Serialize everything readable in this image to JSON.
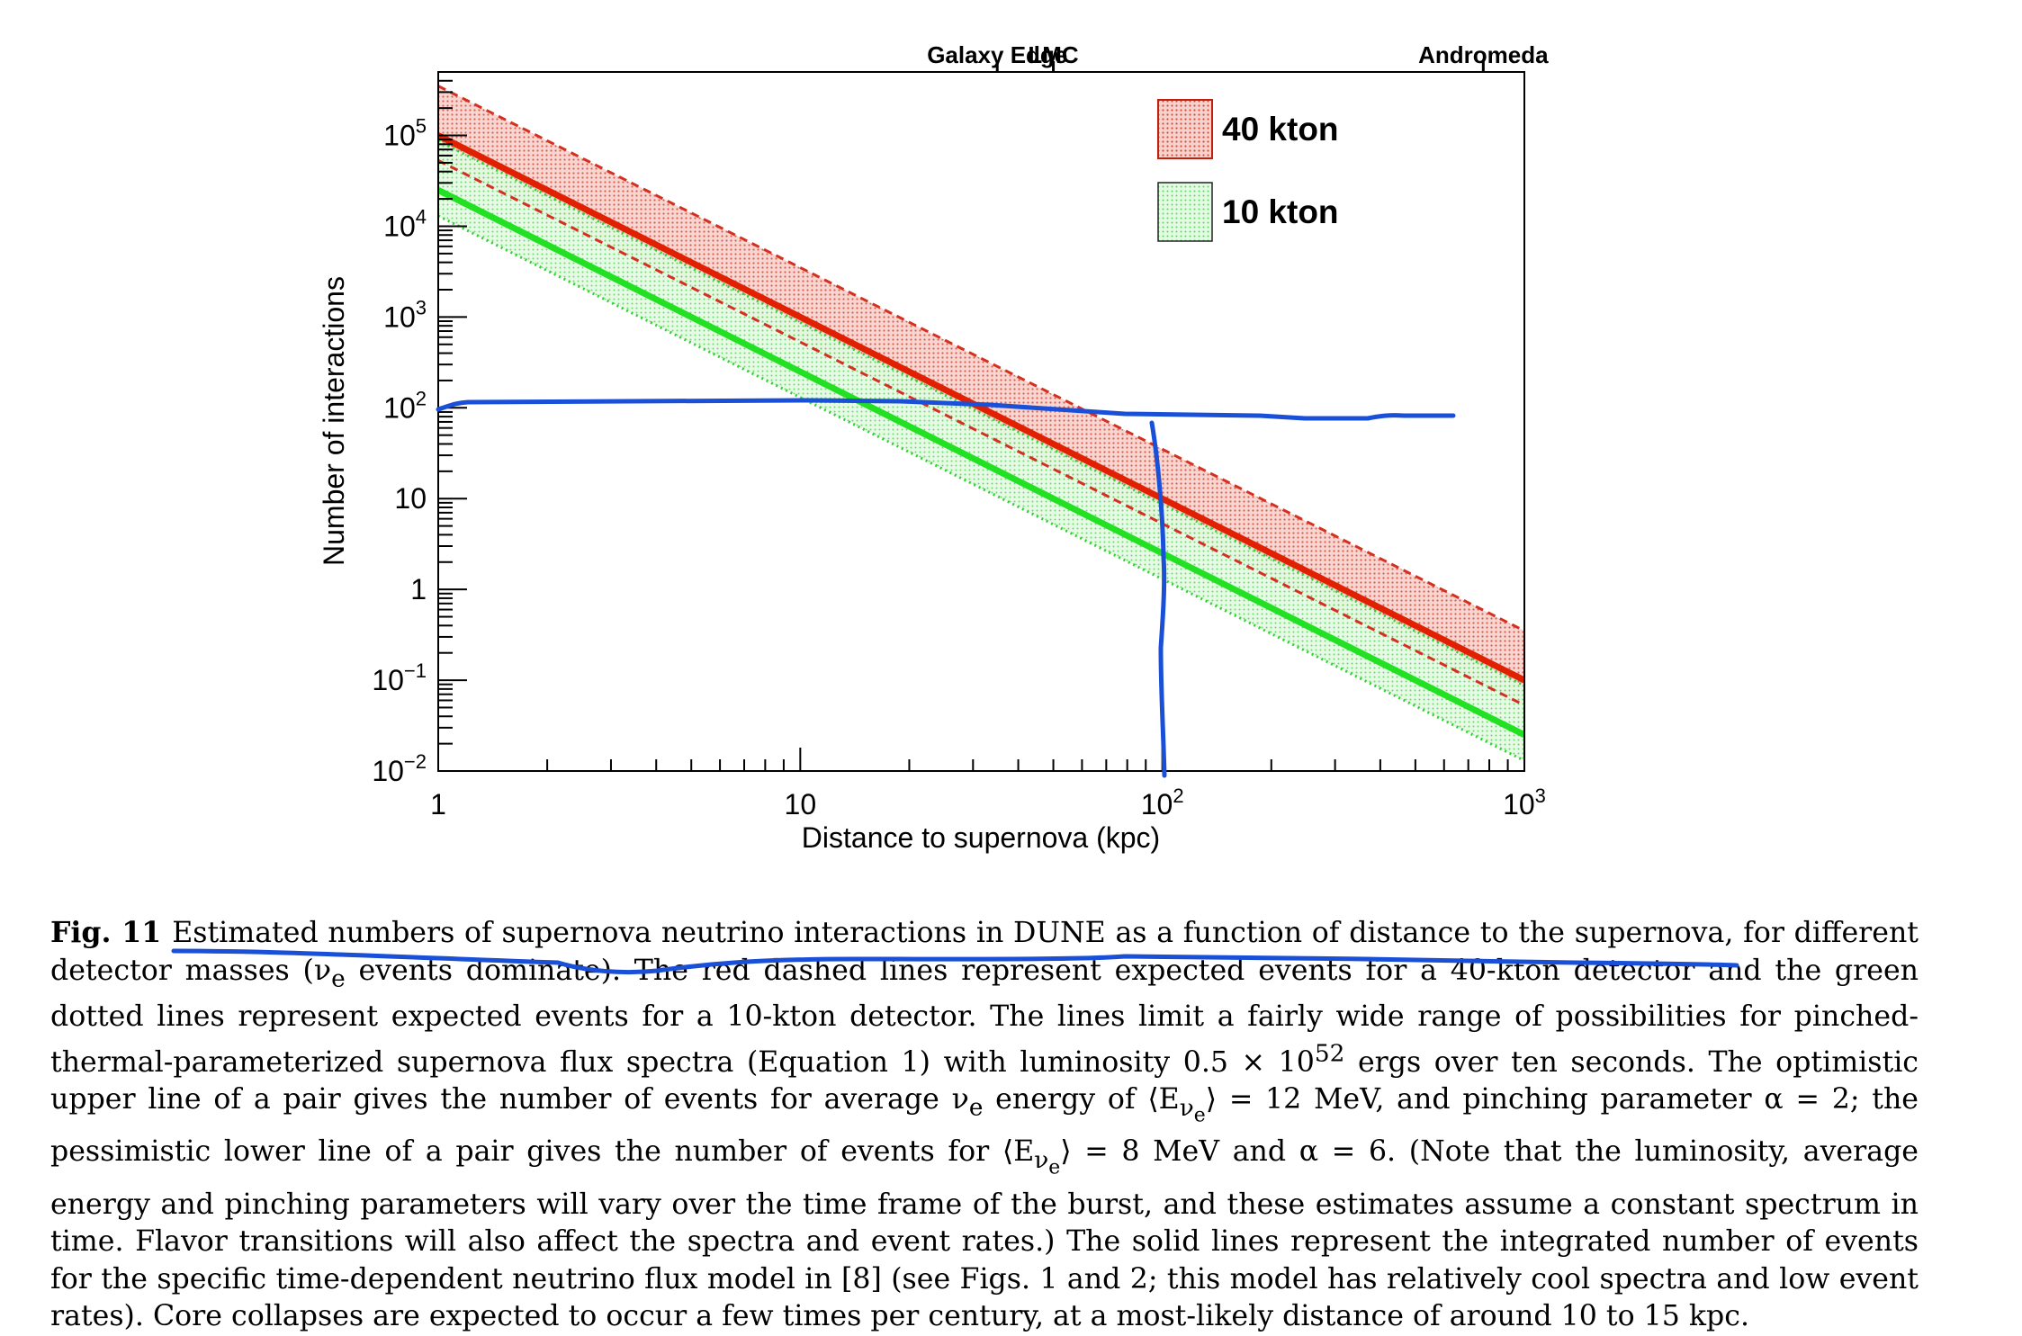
{
  "chart_data": {
    "type": "line",
    "x_scale": "log",
    "y_scale": "log",
    "xlim": [
      1,
      1000
    ],
    "ylim": [
      0.01,
      500000
    ],
    "xlabel": "Distance to supernova (kpc)",
    "ylabel": "Number of interactions",
    "x_ticks": [
      {
        "value": 1,
        "base": "1",
        "exp": ""
      },
      {
        "value": 10,
        "base": "10",
        "exp": ""
      },
      {
        "value": 100,
        "base": "10",
        "exp": "2"
      },
      {
        "value": 1000,
        "base": "10",
        "exp": "3"
      }
    ],
    "y_ticks": [
      {
        "value": 100000,
        "base": "10",
        "exp": "5"
      },
      {
        "value": 10000,
        "base": "10",
        "exp": "4"
      },
      {
        "value": 1000,
        "base": "10",
        "exp": "3"
      },
      {
        "value": 100,
        "base": "10",
        "exp": "2"
      },
      {
        "value": 10,
        "base": "10",
        "exp": ""
      },
      {
        "value": 1,
        "base": "1",
        "exp": ""
      },
      {
        "value": 0.1,
        "base": "10",
        "exp": "−1"
      },
      {
        "value": 0.01,
        "base": "10",
        "exp": "−2"
      }
    ],
    "top_markers": [
      {
        "label": "Galaxy Edge",
        "x": 35
      },
      {
        "label": "LMC",
        "x": 50
      },
      {
        "label": "Andromeda",
        "x": 770
      }
    ],
    "legend": [
      {
        "label": "40 kton",
        "color": "#e03020"
      },
      {
        "label": "10 kton",
        "color": "#40e040"
      }
    ],
    "series": [
      {
        "name": "40 kton",
        "style": "band",
        "color": "#d43020",
        "fill": "#f2b8b0",
        "upper_at_1": 350000,
        "lower_at_1": 53000
      },
      {
        "name": "10 kton",
        "style": "band",
        "color": "#30d030",
        "fill": "#c8f2c8",
        "upper_at_1": 87000,
        "lower_at_1": 13000
      },
      {
        "name": "40 kton",
        "style": "solid",
        "color": "#e02000",
        "value_at_1": 100000
      },
      {
        "name": "10 kton",
        "style": "solid",
        "color": "#22e022",
        "value_at_1": 25000
      }
    ],
    "slope": -2,
    "annotations": [
      {
        "type": "freehand",
        "color": "#1a50d8",
        "description_points": [
          [
            1,
            100
          ],
          [
            1.1,
            115
          ],
          [
            18,
            115
          ],
          [
            100,
            95
          ],
          [
            700,
            95
          ]
        ]
      },
      {
        "type": "freehand",
        "color": "#1a50d8",
        "description_points": [
          [
            98,
            80
          ],
          [
            102,
            3
          ],
          [
            103,
            0.01
          ]
        ]
      }
    ],
    "grid": false
  },
  "caption": {
    "label": "Fig. 11",
    "lines": [
      "Estimated numbers of supernova neutrino interactions in DUNE as a function of distance to the supernova, for different",
      "detector masses (ν<sub>e</sub> events dominate). The red dashed lines represent expected events for a 40-kton detector and the green",
      "dotted lines represent expected events for a 10-kton detector. The lines limit a fairly wide range of possibilities for pinched-",
      "thermal-parameterized supernova flux spectra (Equation 1) with luminosity 0.5 × 10<sup>52</sup> ergs over ten seconds. The optimistic",
      "upper line of a pair gives the number of events for average ν<sub>e</sub> energy of ⟨E<sub>ν<sub>e</sub></sub>⟩ = 12 MeV, and pinching parameter α = 2; the",
      "pessimistic lower line of a pair gives the number of events for ⟨E<sub>ν<sub>e</sub></sub>⟩ = 8 MeV and α = 6. (Note that the luminosity, average",
      "energy and pinching parameters will vary over the time frame of the burst, and these estimates assume a constant spectrum in",
      "time. Flavor transitions will also affect the spectra and event rates.) The solid lines represent the integrated number of events",
      "for the specific time-dependent neutrino flux model in [8] (see Figs. 1 and 2; this model has relatively cool spectra and low",
      "event rates). Core collapses are expected to occur a few times per century, at a most-likely distance of around 10 to 15 kpc."
    ]
  }
}
